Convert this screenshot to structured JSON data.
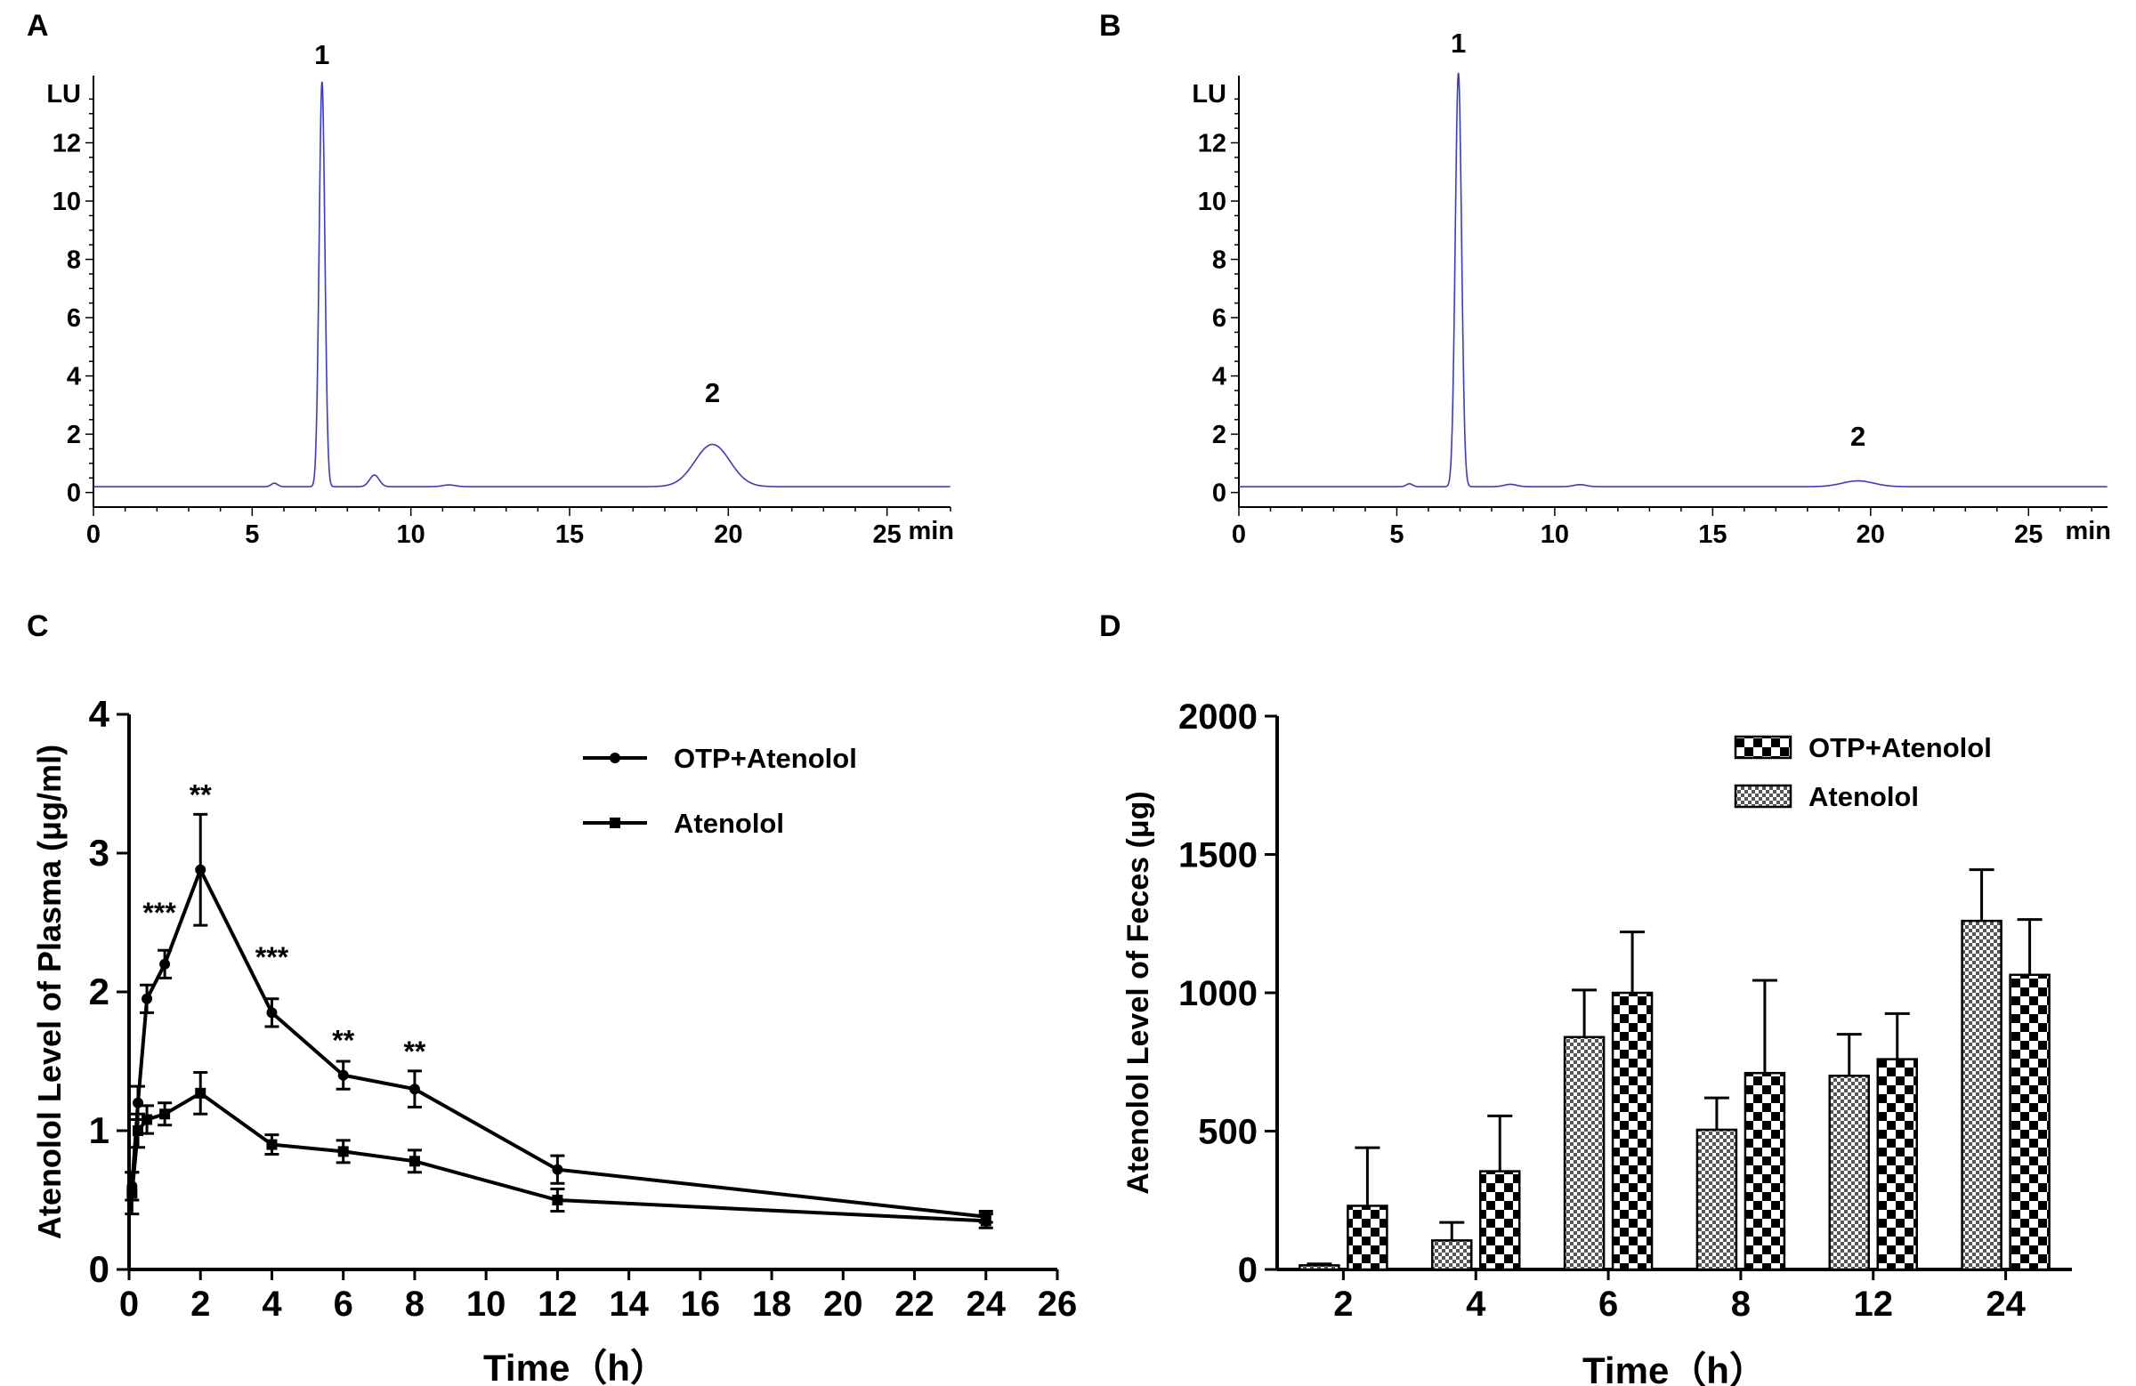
{
  "chart_data": [
    {
      "panel": "A",
      "type": "line",
      "y_unit_label": "LU",
      "x_unit_label": "min",
      "xlim": [
        0,
        27
      ],
      "ylim": [
        -0.5,
        14
      ],
      "x_ticks": [
        0,
        5,
        10,
        15,
        20,
        25
      ],
      "y_ticks": [
        0,
        2,
        4,
        6,
        8,
        10,
        12
      ],
      "line_color": "#3a3acf",
      "baseline": 0.2,
      "peaks": [
        {
          "label": "1",
          "center": 7.2,
          "height": 13.9,
          "width": 0.09
        },
        {
          "label": "",
          "center": 5.7,
          "height": 0.12,
          "width": 0.1
        },
        {
          "label": "",
          "center": 8.85,
          "height": 0.4,
          "width": 0.15
        },
        {
          "label": "",
          "center": 11.2,
          "height": 0.06,
          "width": 0.2
        },
        {
          "label": "2",
          "center": 19.5,
          "height": 1.45,
          "width": 0.55
        }
      ],
      "peak_labels": [
        {
          "text": "1",
          "x": 7.2,
          "y": 14.7
        },
        {
          "text": "2",
          "x": 19.5,
          "y": 3.1
        }
      ]
    },
    {
      "panel": "B",
      "type": "line",
      "y_unit_label": "LU",
      "x_unit_label": "min",
      "xlim": [
        0,
        27.5
      ],
      "ylim": [
        -0.5,
        14
      ],
      "x_ticks": [
        0,
        5,
        10,
        15,
        20,
        25
      ],
      "y_ticks": [
        0,
        2,
        4,
        6,
        8,
        10,
        12
      ],
      "line_color": "#3a3acf",
      "baseline": 0.2,
      "peaks": [
        {
          "label": "1",
          "center": 6.95,
          "height": 14.2,
          "width": 0.1
        },
        {
          "label": "",
          "center": 5.4,
          "height": 0.1,
          "width": 0.1
        },
        {
          "label": "",
          "center": 8.6,
          "height": 0.08,
          "width": 0.2
        },
        {
          "label": "",
          "center": 10.8,
          "height": 0.07,
          "width": 0.2
        },
        {
          "label": "2",
          "center": 19.6,
          "height": 0.2,
          "width": 0.5
        }
      ],
      "peak_labels": [
        {
          "text": "1",
          "x": 6.95,
          "y": 15.1
        },
        {
          "text": "2",
          "x": 19.6,
          "y": 1.6
        }
      ]
    },
    {
      "panel": "C",
      "type": "line",
      "xlabel": "Time（h）",
      "ylabel": "Atenolol Level of Plasma (μg/ml)",
      "xlim": [
        0,
        26
      ],
      "ylim": [
        0,
        4
      ],
      "x_ticks": [
        0,
        2,
        4,
        6,
        8,
        10,
        12,
        14,
        16,
        18,
        20,
        22,
        24,
        26
      ],
      "y_ticks": [
        0,
        1,
        2,
        3,
        4
      ],
      "legend_position": "top-right",
      "series": [
        {
          "name": "OTP+Atenolol",
          "marker": "circle",
          "x": [
            0.083,
            0.25,
            0.5,
            1,
            2,
            4,
            6,
            8,
            12,
            24
          ],
          "y": [
            0.6,
            1.2,
            1.95,
            2.2,
            2.88,
            1.85,
            1.4,
            1.3,
            0.72,
            0.38
          ],
          "err": [
            0.1,
            0.12,
            0.1,
            0.1,
            0.4,
            0.1,
            0.1,
            0.13,
            0.1,
            0.04
          ]
        },
        {
          "name": "Atenolol",
          "marker": "square",
          "x": [
            0.083,
            0.25,
            0.5,
            1,
            2,
            4,
            6,
            8,
            12,
            24
          ],
          "y": [
            0.55,
            1.0,
            1.08,
            1.12,
            1.27,
            0.9,
            0.85,
            0.78,
            0.5,
            0.35
          ],
          "err": [
            0.15,
            0.12,
            0.1,
            0.08,
            0.15,
            0.07,
            0.08,
            0.08,
            0.08,
            0.05
          ]
        }
      ],
      "annotations": [
        {
          "text": "***",
          "x": 0.85,
          "y": 2.5
        },
        {
          "text": "**",
          "x": 2.0,
          "y": 3.35
        },
        {
          "text": "***",
          "x": 4.0,
          "y": 2.18
        },
        {
          "text": "**",
          "x": 6.0,
          "y": 1.58
        },
        {
          "text": "**",
          "x": 8.0,
          "y": 1.5
        }
      ]
    },
    {
      "panel": "D",
      "type": "bar",
      "xlabel": "Time（h）",
      "ylabel": "Atenolol Level of Feces (μg)",
      "categories": [
        "2",
        "4",
        "6",
        "8",
        "12",
        "24"
      ],
      "ylim": [
        0,
        2000
      ],
      "y_ticks": [
        0,
        500,
        1000,
        1500,
        2000
      ],
      "legend_position": "top-right",
      "series": [
        {
          "name": "OTP+Atenolol",
          "pattern": "checker",
          "values": [
            230,
            355,
            1000,
            710,
            760,
            1065
          ],
          "err": [
            210,
            200,
            220,
            335,
            165,
            200
          ]
        },
        {
          "name": "Atenolol",
          "pattern": "fine-checker",
          "values": [
            15,
            105,
            840,
            505,
            700,
            1260
          ],
          "err": [
            5,
            65,
            170,
            115,
            150,
            185
          ]
        }
      ]
    }
  ],
  "panels": {
    "a": {
      "label": "A"
    },
    "b": {
      "label": "B"
    },
    "c": {
      "label": "C"
    },
    "d": {
      "label": "D"
    }
  }
}
